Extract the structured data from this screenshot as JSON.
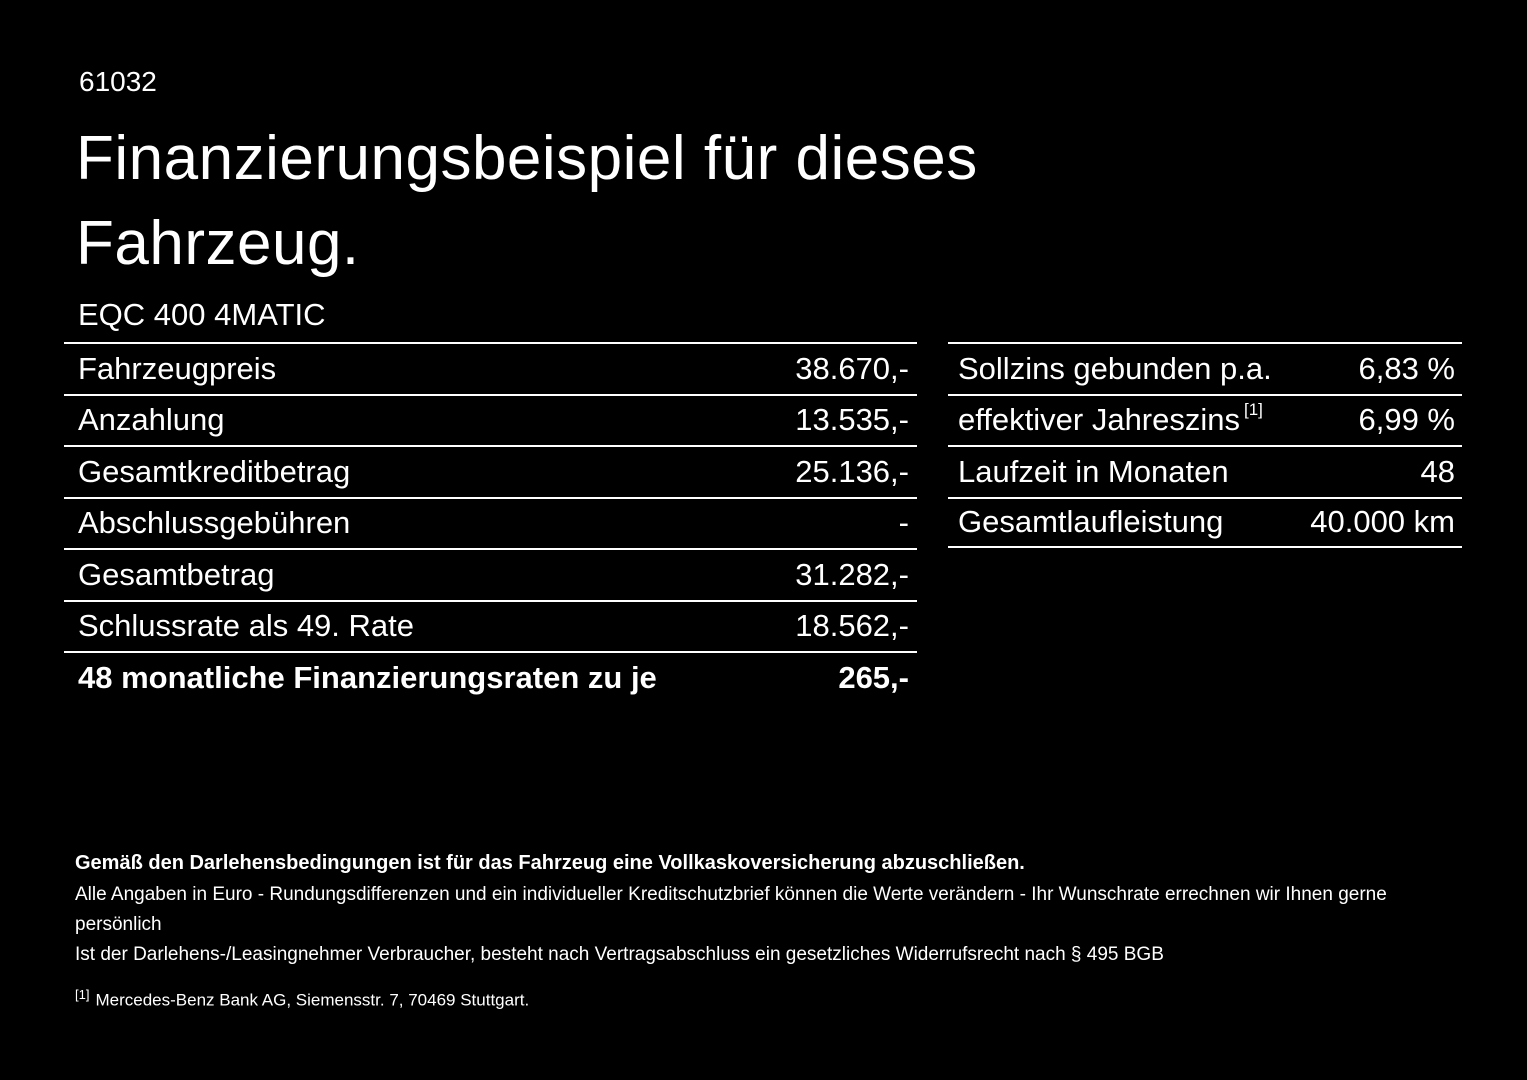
{
  "page": {
    "code": "61032",
    "title_line1": "Finanzierungsbeispiel für dieses",
    "title_line2": "Fahrzeug.",
    "model": "EQC 400 4MATIC"
  },
  "left_table": {
    "rows": [
      {
        "label": "Fahrzeugpreis",
        "value": "38.670,-"
      },
      {
        "label": "Anzahlung",
        "value": "13.535,-"
      },
      {
        "label": "Gesamtkreditbetrag",
        "value": "25.136,-"
      },
      {
        "label": "Abschlussgebühren",
        "value": "-"
      },
      {
        "label": "Gesamtbetrag",
        "value": "31.282,-"
      },
      {
        "label": "Schlussrate als 49. Rate",
        "value": "18.562,-"
      },
      {
        "label": "48 monatliche Finanzierungsraten zu je",
        "value": "265,-"
      }
    ]
  },
  "right_table": {
    "rows": [
      {
        "label": "Sollzins gebunden p.a.",
        "value": "6,83 %"
      },
      {
        "label": "effektiver Jahreszins",
        "sup": "[1]",
        "value": "6,99 %"
      },
      {
        "label": "Laufzeit in Monaten",
        "value": "48"
      },
      {
        "label": "Gesamtlaufleistung",
        "value": "40.000 km"
      }
    ]
  },
  "footnotes": {
    "insurance": "Gemäß den Darlehensbedingungen ist für das Fahrzeug eine Vollkaskoversicherung abzuschließen.",
    "euro_note": "Alle Angaben in Euro - Rundungsdifferenzen und ein individueller Kreditschutzbrief können die Werte verändern - Ihr Wunschrate errechnen wir Ihnen gerne persönlich",
    "withdrawal": "Ist der Darlehens-/Leasingnehmer Verbraucher, besteht nach Vertragsabschluss ein gesetzliches Widerrufsrecht nach § 495 BGB",
    "ref_marker": "[1]",
    "ref_text": "Mercedes-Benz Bank AG, Siemensstr. 7, 70469 Stuttgart."
  },
  "colors": {
    "background": "#000000",
    "text": "#ffffff"
  }
}
